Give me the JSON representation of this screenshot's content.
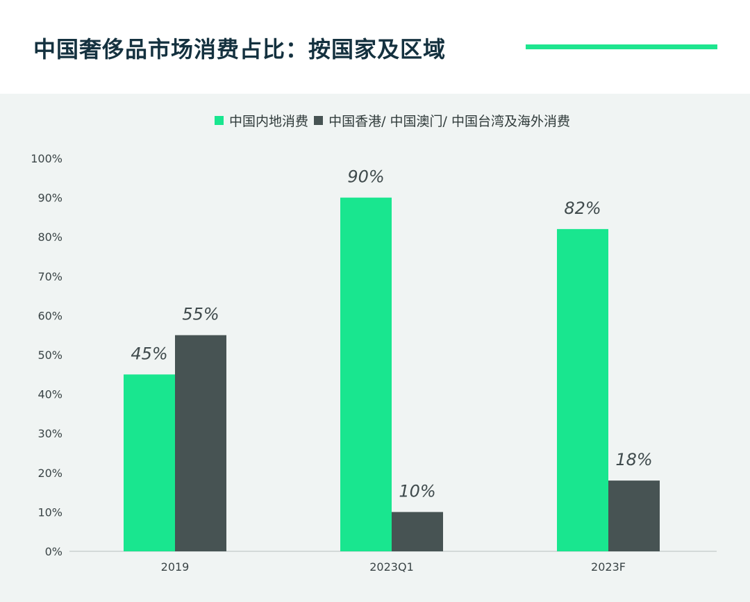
{
  "title": "中国奢侈品市场消费占比：按国家及区域",
  "colors": {
    "title_rule": "#1ee58f",
    "panel_bg": "#f0f4f3"
  },
  "chart_data": {
    "type": "bar",
    "categories": [
      "2019",
      "2023Q1",
      "2023F"
    ],
    "series": [
      {
        "name": "中国内地消费",
        "color": "#19e68f",
        "values": [
          45,
          90,
          82
        ]
      },
      {
        "name": "中国香港/ 中国澳门/ 中国台湾及海外消费",
        "color": "#475353",
        "values": [
          55,
          10,
          18
        ]
      }
    ],
    "data_labels": [
      [
        "45%",
        "90%",
        "82%"
      ],
      [
        "55%",
        "10%",
        "18%"
      ]
    ],
    "yticks": [
      "0%",
      "10%",
      "20%",
      "30%",
      "40%",
      "50%",
      "60%",
      "70%",
      "80%",
      "90%",
      "100%"
    ],
    "ylim": [
      0,
      100
    ],
    "grid": false,
    "legend_position": "top-center"
  }
}
